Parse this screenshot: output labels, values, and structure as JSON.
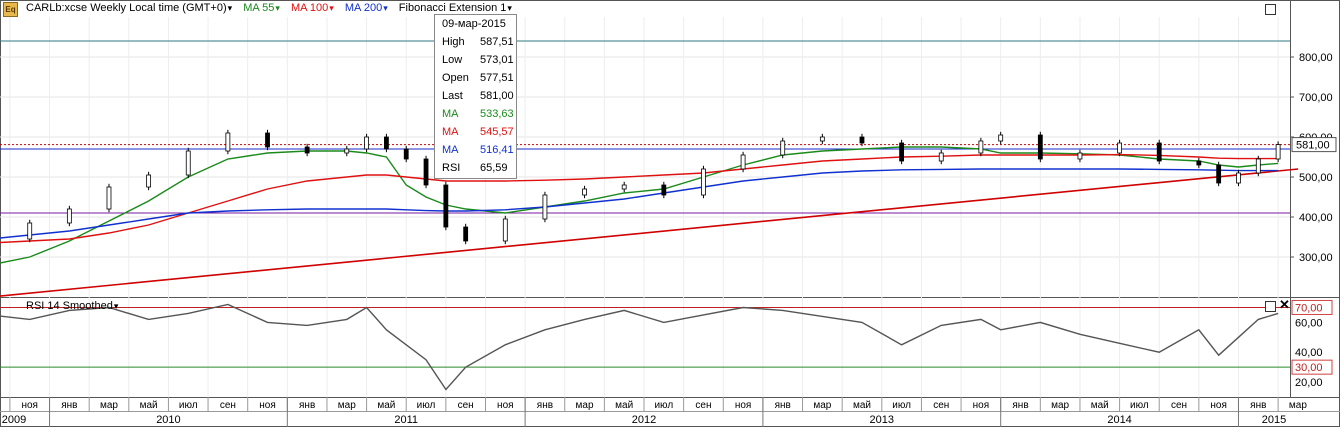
{
  "header": {
    "symbol_label": "CARLb:xcse Weekly Local time (GMT+0)",
    "ma55_label": "MA 55",
    "ma100_label": "MA 100",
    "ma200_label": "MA 200",
    "fib_label": "Fibonacci Extension 1"
  },
  "colors": {
    "ma55": "#1a8a1a",
    "ma100": "#e01010",
    "ma200": "#1030d0",
    "fib_teal": "#2e7a86",
    "fib_purple": "#7a1aa0",
    "fib_blue": "#1a2ad0",
    "price_line": "#d00000"
  },
  "tooltip": {
    "date": "09-мар-2015",
    "rows": [
      {
        "label": "High",
        "value": "587,51",
        "color": "#000"
      },
      {
        "label": "Low",
        "value": "573,01",
        "color": "#000"
      },
      {
        "label": "Open",
        "value": "577,51",
        "color": "#000"
      },
      {
        "label": "Last",
        "value": "581,00",
        "color": "#000"
      },
      {
        "label": "MA",
        "value": "533,63",
        "color": "#1a8a1a"
      },
      {
        "label": "MA",
        "value": "545,57",
        "color": "#e01010"
      },
      {
        "label": "MA",
        "value": "516,41",
        "color": "#1030d0"
      },
      {
        "label": "RSI",
        "value": "65,59",
        "color": "#000"
      }
    ]
  },
  "rsi_panel": {
    "title": "RSI 14 Smoothed"
  },
  "chart_data": {
    "type": "candlestick",
    "price_axis": {
      "ticks": [
        "800,00",
        "700,00",
        "600,00",
        "500,00",
        "400,00",
        "300,00"
      ],
      "ylim": [
        200,
        900
      ]
    },
    "last_price_label": "581,00",
    "fibonacci_levels": [
      840,
      581,
      570,
      410
    ],
    "trendline": {
      "from": [
        "2009-10",
        200
      ],
      "to": [
        "2015-03",
        520
      ]
    },
    "price_x": [
      "2009-10",
      "2009-12",
      "2010-02",
      "2010-04",
      "2010-06",
      "2010-08",
      "2010-10",
      "2010-12",
      "2011-02",
      "2011-04",
      "2011-05",
      "2011-06",
      "2011-07",
      "2011-08",
      "2011-09",
      "2011-10",
      "2011-12",
      "2012-02",
      "2012-04",
      "2012-06",
      "2012-08",
      "2012-10",
      "2012-12",
      "2013-02",
      "2013-04",
      "2013-06",
      "2013-08",
      "2013-10",
      "2013-12",
      "2014-01",
      "2014-03",
      "2014-05",
      "2014-07",
      "2014-09",
      "2014-11",
      "2014-12",
      "2015-01",
      "2015-02",
      "2015-03"
    ],
    "price_close": [
      345,
      385,
      420,
      475,
      505,
      565,
      610,
      575,
      560,
      570,
      600,
      570,
      545,
      480,
      375,
      340,
      395,
      455,
      470,
      480,
      455,
      520,
      555,
      590,
      600,
      585,
      540,
      560,
      590,
      605,
      545,
      560,
      585,
      540,
      530,
      485,
      510,
      545,
      581
    ],
    "ma55": [
      280,
      300,
      340,
      390,
      440,
      500,
      545,
      560,
      565,
      565,
      560,
      550,
      480,
      450,
      430,
      420,
      410,
      425,
      440,
      460,
      470,
      500,
      530,
      555,
      565,
      570,
      575,
      575,
      570,
      560,
      560,
      558,
      555,
      545,
      540,
      530,
      525,
      530,
      534
    ],
    "ma100": [
      335,
      340,
      345,
      360,
      380,
      410,
      440,
      470,
      490,
      500,
      505,
      505,
      500,
      495,
      490,
      490,
      490,
      492,
      495,
      500,
      505,
      510,
      520,
      530,
      540,
      545,
      550,
      552,
      555,
      555,
      555,
      555,
      556,
      554,
      550,
      547,
      546,
      546,
      546
    ],
    "ma200": [
      345,
      355,
      365,
      380,
      395,
      410,
      415,
      418,
      420,
      420,
      420,
      420,
      418,
      416,
      415,
      415,
      418,
      425,
      435,
      445,
      460,
      475,
      490,
      500,
      510,
      515,
      518,
      519,
      520,
      520,
      520,
      520,
      520,
      519,
      518,
      517,
      516,
      516,
      516
    ],
    "rsi_axis": {
      "ticks": [
        "70,00",
        "60,00",
        "40,00",
        "30,00",
        "20,00"
      ],
      "ylim": [
        10,
        75
      ],
      "levels": [
        70,
        30
      ]
    },
    "rsi_values": [
      65,
      62,
      68,
      70,
      62,
      66,
      72,
      60,
      58,
      62,
      70,
      55,
      45,
      35,
      15,
      30,
      45,
      55,
      62,
      68,
      60,
      65,
      70,
      68,
      64,
      60,
      45,
      58,
      62,
      55,
      60,
      52,
      46,
      40,
      55,
      38,
      50,
      62,
      66
    ],
    "x_axis": {
      "months": [
        "ноя",
        "янв",
        "мар",
        "май",
        "июл",
        "сен",
        "ноя",
        "янв",
        "мар",
        "май",
        "июл",
        "сен",
        "ноя",
        "янв",
        "мар",
        "май",
        "июл",
        "сен",
        "ноя",
        "янв",
        "мар",
        "май",
        "июл",
        "сен",
        "ноя",
        "янв",
        "мар",
        "май",
        "июл",
        "сен",
        "ноя",
        "янв",
        "мар"
      ],
      "years": [
        "2009",
        "2010",
        "2011",
        "2012",
        "2013",
        "2014",
        "2015"
      ]
    }
  }
}
